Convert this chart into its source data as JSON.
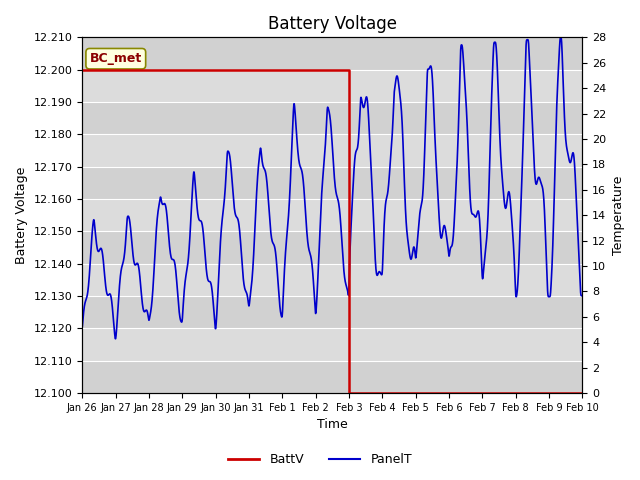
{
  "title": "Battery Voltage",
  "xlabel": "Time",
  "ylabel_left": "Battery Voltage",
  "ylabel_right": "Temperature",
  "ylim_left": [
    12.1,
    12.21
  ],
  "ylim_right": [
    0,
    28
  ],
  "xtick_labels": [
    "Jan 26",
    "Jan 27",
    "Jan 28",
    "Jan 29",
    "Jan 30",
    "Jan 31",
    "Feb 1",
    "Feb 2",
    "Feb 3",
    "Feb 4",
    "Feb 5",
    "Feb 6",
    "Feb 7",
    "Feb 8",
    "Feb 9",
    "Feb 10"
  ],
  "annotation_text": "BC_met",
  "batt_color": "#cc0000",
  "panel_color": "#0000cc",
  "background_color": "#d8d8d8",
  "legend_labels": [
    "BattV",
    "PanelT"
  ],
  "title_fontsize": 12,
  "label_fontsize": 9,
  "tick_fontsize": 8
}
